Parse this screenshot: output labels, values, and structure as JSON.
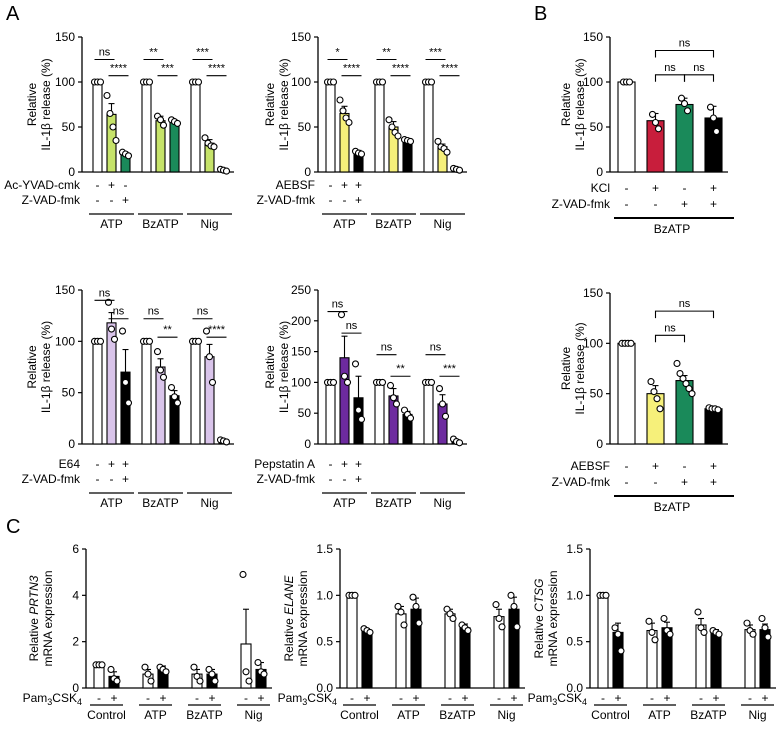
{
  "colors": {
    "white": "#ffffff",
    "lightyellow": "#f6f07a",
    "yellowgreen": "#c6e36a",
    "green": "#1a8a5a",
    "purple": "#6d2b9f",
    "lavender": "#d9c4ea",
    "red": "#c81e3c",
    "black": "#000000"
  },
  "panel_labels": {
    "a": "A",
    "b": "B",
    "c": "C"
  },
  "chart_data": [
    {
      "id": "A1",
      "type": "bar",
      "ylabel": "Relative IL-1β release (%)",
      "ylim": [
        0,
        150
      ],
      "yticks": [
        0,
        50,
        100,
        150
      ],
      "groups": [
        "ATP",
        "BzATP",
        "Nig"
      ],
      "row_labels": [
        "Ac-YVAD-cmk",
        "Z-VAD-fmk"
      ],
      "conditions": [
        [
          "-",
          "+",
          "-"
        ],
        [
          "-",
          "-",
          "+"
        ]
      ],
      "bar_colors": [
        "white",
        "yellowgreen",
        "green"
      ],
      "values": [
        [
          100,
          64,
          19
        ],
        [
          100,
          57,
          56
        ],
        [
          100,
          32,
          2
        ]
      ],
      "errors": [
        [
          0,
          12,
          3
        ],
        [
          0,
          5,
          2
        ],
        [
          0,
          4,
          1
        ]
      ],
      "points": [
        [
          [
            100,
            100,
            100
          ],
          [
            85,
            65,
            50,
            35
          ],
          [
            22,
            20,
            18
          ]
        ],
        [
          [
            100,
            100,
            100
          ],
          [
            62,
            58,
            52
          ],
          [
            58,
            56,
            54
          ]
        ],
        [
          [
            100,
            100,
            100
          ],
          [
            38,
            32,
            29,
            28
          ],
          [
            3,
            2,
            1
          ]
        ]
      ],
      "brackets": [
        {
          "g": 0,
          "a": 0,
          "b": 1,
          "y": 125,
          "label": "ns"
        },
        {
          "g": 0,
          "a": 1,
          "b": 2,
          "y": 107,
          "label": "****"
        },
        {
          "g": 1,
          "a": 0,
          "b": 1,
          "y": 125,
          "label": "**"
        },
        {
          "g": 1,
          "a": 1,
          "b": 2,
          "y": 107,
          "label": "***"
        },
        {
          "g": 2,
          "a": 0,
          "b": 1,
          "y": 125,
          "label": "***"
        },
        {
          "g": 2,
          "a": 1,
          "b": 2,
          "y": 107,
          "label": "****"
        }
      ]
    },
    {
      "id": "A2",
      "type": "bar",
      "ylabel": "Relative IL-1β release (%)",
      "ylim": [
        0,
        150
      ],
      "yticks": [
        0,
        50,
        100,
        150
      ],
      "groups": [
        "ATP",
        "BzATP",
        "Nig"
      ],
      "row_labels": [
        "AEBSF",
        "Z-VAD-fmk"
      ],
      "conditions": [
        [
          "-",
          "+",
          "+"
        ],
        [
          "-",
          "-",
          "+"
        ]
      ],
      "bar_colors": [
        "white",
        "lightyellow",
        "black"
      ],
      "values": [
        [
          100,
          65,
          22
        ],
        [
          100,
          50,
          35
        ],
        [
          100,
          28,
          3
        ]
      ],
      "errors": [
        [
          0,
          8,
          2
        ],
        [
          0,
          6,
          2
        ],
        [
          0,
          3,
          1
        ]
      ],
      "points": [
        [
          [
            100,
            100,
            100
          ],
          [
            80,
            68,
            60,
            55
          ],
          [
            23,
            21,
            20
          ]
        ],
        [
          [
            100,
            100,
            100
          ],
          [
            58,
            50,
            44,
            40
          ],
          [
            36,
            35,
            34
          ]
        ],
        [
          [
            100,
            100,
            100
          ],
          [
            34,
            28,
            26,
            22
          ],
          [
            4,
            3,
            2
          ]
        ]
      ],
      "brackets": [
        {
          "g": 0,
          "a": 0,
          "b": 1,
          "y": 125,
          "label": "*"
        },
        {
          "g": 0,
          "a": 1,
          "b": 2,
          "y": 107,
          "label": "****"
        },
        {
          "g": 1,
          "a": 0,
          "b": 1,
          "y": 125,
          "label": "**"
        },
        {
          "g": 1,
          "a": 1,
          "b": 2,
          "y": 107,
          "label": "****"
        },
        {
          "g": 2,
          "a": 0,
          "b": 1,
          "y": 125,
          "label": "***"
        },
        {
          "g": 2,
          "a": 1,
          "b": 2,
          "y": 107,
          "label": "****"
        }
      ]
    },
    {
      "id": "B1",
      "type": "bar",
      "ylabel": "Relative IL-1β release (%)",
      "ylim": [
        0,
        150
      ],
      "yticks": [
        0,
        50,
        100,
        150
      ],
      "groups": [
        "BzATP"
      ],
      "row_labels": [
        "KCl",
        "Z-VAD-fmk"
      ],
      "conditions": [
        [
          "-",
          "+",
          "-",
          "+"
        ],
        [
          "-",
          "-",
          "+",
          "+"
        ]
      ],
      "bar_colors": [
        "white",
        "red",
        "green",
        "black"
      ],
      "values": [
        [
          100,
          57,
          75,
          60
        ]
      ],
      "errors": [
        [
          0,
          8,
          7,
          13
        ]
      ],
      "points": [
        [
          [
            100,
            100,
            100
          ],
          [
            64,
            55,
            48
          ],
          [
            82,
            76,
            68
          ],
          [
            72,
            60,
            45
          ]
        ]
      ],
      "brackets": [
        {
          "g": 0,
          "a": 1,
          "b": 3,
          "y": 135,
          "label": "ns"
        },
        {
          "g": 0,
          "a": 1,
          "b": 2,
          "y": 108,
          "label": "ns"
        },
        {
          "g": 0,
          "a": 2,
          "b": 3,
          "y": 108,
          "label": "ns"
        }
      ]
    },
    {
      "id": "A3",
      "type": "bar",
      "ylabel": "Relative IL-1β release (%)",
      "ylim": [
        0,
        150
      ],
      "yticks": [
        0,
        50,
        100,
        150
      ],
      "groups": [
        "ATP",
        "BzATP",
        "Nig"
      ],
      "row_labels": [
        "E64",
        "Z-VAD-fmk"
      ],
      "conditions": [
        [
          "-",
          "+",
          "+"
        ],
        [
          "-",
          "-",
          "+"
        ]
      ],
      "bar_colors": [
        "white",
        "lavender",
        "black"
      ],
      "values": [
        [
          100,
          118,
          70
        ],
        [
          100,
          75,
          47
        ],
        [
          100,
          85,
          3
        ]
      ],
      "errors": [
        [
          0,
          10,
          22
        ],
        [
          0,
          8,
          5
        ],
        [
          0,
          12,
          1
        ]
      ],
      "points": [
        [
          [
            100,
            100,
            100
          ],
          [
            138,
            112,
            102
          ],
          [
            110,
            60,
            40
          ]
        ],
        [
          [
            100,
            100,
            100
          ],
          [
            90,
            72,
            65
          ],
          [
            55,
            46,
            40
          ]
        ],
        [
          [
            100,
            100,
            100
          ],
          [
            110,
            85,
            60
          ],
          [
            4,
            3,
            2
          ]
        ]
      ],
      "brackets": [
        {
          "g": 0,
          "a": 0,
          "b": 1,
          "y": 140,
          "label": "ns"
        },
        {
          "g": 0,
          "a": 1,
          "b": 2,
          "y": 122,
          "label": "ns"
        },
        {
          "g": 1,
          "a": 0,
          "b": 1,
          "y": 122,
          "label": "ns"
        },
        {
          "g": 1,
          "a": 1,
          "b": 2,
          "y": 104,
          "label": "**"
        },
        {
          "g": 2,
          "a": 0,
          "b": 1,
          "y": 122,
          "label": "ns"
        },
        {
          "g": 2,
          "a": 1,
          "b": 2,
          "y": 104,
          "label": "****"
        }
      ]
    },
    {
      "id": "A4",
      "type": "bar",
      "ylabel": "Relative IL-1β release (%)",
      "ylim": [
        0,
        250
      ],
      "yticks": [
        0,
        50,
        100,
        150,
        200,
        250
      ],
      "groups": [
        "ATP",
        "BzATP",
        "Nig"
      ],
      "row_labels": [
        "Pepstatin A",
        "Z-VAD-fmk"
      ],
      "conditions": [
        [
          "-",
          "+",
          "+"
        ],
        [
          "-",
          "-",
          "+"
        ]
      ],
      "bar_colors": [
        "white",
        "purple",
        "black"
      ],
      "values": [
        [
          100,
          140,
          75
        ],
        [
          100,
          78,
          48
        ],
        [
          100,
          65,
          5
        ]
      ],
      "errors": [
        [
          0,
          35,
          35
        ],
        [
          0,
          12,
          5
        ],
        [
          0,
          15,
          2
        ]
      ],
      "points": [
        [
          [
            100,
            100,
            100
          ],
          [
            210,
            110,
            100
          ],
          [
            130,
            55,
            40
          ]
        ],
        [
          [
            100,
            100,
            100
          ],
          [
            95,
            75,
            65
          ],
          [
            55,
            48,
            42
          ]
        ],
        [
          [
            100,
            100,
            100
          ],
          [
            90,
            65,
            45
          ],
          [
            8,
            4,
            2
          ]
        ]
      ],
      "brackets": [
        {
          "g": 0,
          "a": 0,
          "b": 1,
          "y": 215,
          "label": "ns"
        },
        {
          "g": 0,
          "a": 1,
          "b": 2,
          "y": 180,
          "label": "ns"
        },
        {
          "g": 1,
          "a": 0,
          "b": 1,
          "y": 145,
          "label": "ns"
        },
        {
          "g": 1,
          "a": 1,
          "b": 2,
          "y": 110,
          "label": "**"
        },
        {
          "g": 2,
          "a": 0,
          "b": 1,
          "y": 145,
          "label": "ns"
        },
        {
          "g": 2,
          "a": 1,
          "b": 2,
          "y": 110,
          "label": "***"
        }
      ]
    },
    {
      "id": "B2",
      "type": "bar",
      "ylabel": "Relative IL-1β release (%)",
      "ylim": [
        0,
        150
      ],
      "yticks": [
        0,
        50,
        100,
        150
      ],
      "groups": [
        "BzATP"
      ],
      "row_labels": [
        "AEBSF",
        "Z-VAD-fmk"
      ],
      "conditions": [
        [
          "-",
          "+",
          "-",
          "+"
        ],
        [
          "-",
          "-",
          "+",
          "+"
        ]
      ],
      "bar_colors": [
        "white",
        "lightyellow",
        "green",
        "black"
      ],
      "values": [
        [
          100,
          50,
          63,
          35
        ]
      ],
      "errors": [
        [
          0,
          8,
          5,
          1
        ]
      ],
      "points": [
        [
          [
            100,
            100,
            100,
            100
          ],
          [
            62,
            52,
            45,
            35
          ],
          [
            80,
            70,
            65,
            60,
            55,
            50
          ],
          [
            36,
            35,
            35,
            34
          ]
        ]
      ],
      "brackets": [
        {
          "g": 0,
          "a": 1,
          "b": 3,
          "y": 132,
          "label": "ns"
        },
        {
          "g": 0,
          "a": 1,
          "b": 2,
          "y": 108,
          "label": "ns"
        }
      ]
    },
    {
      "id": "C1",
      "type": "bar",
      "ylabel": "Relative PRTN3 mRNA expression",
      "ylim": [
        0,
        6
      ],
      "yticks": [
        0,
        2,
        4,
        6
      ],
      "groups": [
        "Control",
        "ATP",
        "BzATP",
        "Nig"
      ],
      "row_labels": [
        "Pam3CSK4"
      ],
      "conditions": [
        [
          "-",
          "+",
          "-",
          "+",
          "-",
          "+",
          "-",
          "+"
        ]
      ],
      "bar_colors": [
        "white",
        "black"
      ],
      "values": [
        [
          1.0,
          0.5
        ],
        [
          0.6,
          0.8
        ],
        [
          0.6,
          0.6
        ],
        [
          1.9,
          0.8
        ]
      ],
      "errors": [
        [
          0,
          0.2
        ],
        [
          0.2,
          0.15
        ],
        [
          0.2,
          0.2
        ],
        [
          1.5,
          0.3
        ]
      ],
      "points": [
        [
          [
            1.0,
            1.0,
            1.0
          ],
          [
            0.8,
            0.4,
            0.3
          ]
        ],
        [
          [
            0.9,
            0.6,
            0.3
          ],
          [
            0.9,
            0.8,
            0.7
          ]
        ],
        [
          [
            0.9,
            0.5,
            0.3
          ],
          [
            0.8,
            0.6,
            0.3
          ]
        ],
        [
          [
            4.9,
            0.7,
            0.3
          ],
          [
            1.1,
            0.7,
            0.6
          ]
        ]
      ],
      "brackets": []
    },
    {
      "id": "C2",
      "type": "bar",
      "ylabel": "Relative ELANE mRNA expression",
      "ylim": [
        0,
        1.5
      ],
      "yticks": [
        0.0,
        0.5,
        1.0,
        1.5
      ],
      "groups": [
        "Control",
        "ATP",
        "BzATP",
        "Nig"
      ],
      "row_labels": [
        "Pam3CSK4"
      ],
      "conditions": [
        [
          "-",
          "+",
          "-",
          "+",
          "-",
          "+",
          "-",
          "+"
        ]
      ],
      "bar_colors": [
        "white",
        "black"
      ],
      "values": [
        [
          1.0,
          0.62
        ],
        [
          0.8,
          0.85
        ],
        [
          0.8,
          0.65
        ],
        [
          0.77,
          0.85
        ]
      ],
      "errors": [
        [
          0,
          0.02
        ],
        [
          0.08,
          0.12
        ],
        [
          0.05,
          0.04
        ],
        [
          0.08,
          0.13
        ]
      ],
      "points": [
        [
          [
            1.0,
            1.0,
            1.0
          ],
          [
            0.64,
            0.62,
            0.6
          ]
        ],
        [
          [
            0.88,
            0.82,
            0.68
          ],
          [
            0.98,
            0.88,
            0.7
          ]
        ],
        [
          [
            0.85,
            0.8,
            0.75
          ],
          [
            0.68,
            0.65,
            0.62
          ]
        ],
        [
          [
            0.9,
            0.75,
            0.66
          ],
          [
            1.0,
            0.88,
            0.66
          ]
        ]
      ],
      "brackets": []
    },
    {
      "id": "C3",
      "type": "bar",
      "ylabel": "Relative CTSG mRNA expression",
      "ylim": [
        0,
        1.5
      ],
      "yticks": [
        0.0,
        0.5,
        1.0,
        1.5
      ],
      "groups": [
        "Control",
        "ATP",
        "BzATP",
        "Nig"
      ],
      "row_labels": [
        "Pam3CSK4"
      ],
      "conditions": [
        [
          "-",
          "+",
          "-",
          "+",
          "-",
          "+",
          "-",
          "+"
        ]
      ],
      "bar_colors": [
        "white",
        "black"
      ],
      "values": [
        [
          1.0,
          0.6
        ],
        [
          0.62,
          0.65
        ],
        [
          0.68,
          0.6
        ],
        [
          0.63,
          0.63
        ]
      ],
      "errors": [
        [
          0,
          0.1
        ],
        [
          0.08,
          0.06
        ],
        [
          0.07,
          0.03
        ],
        [
          0.05,
          0.06
        ]
      ],
      "points": [
        [
          [
            1.0,
            1.0,
            1.0
          ],
          [
            0.65,
            0.58,
            0.4
          ]
        ],
        [
          [
            0.72,
            0.6,
            0.52
          ],
          [
            0.75,
            0.62,
            0.58
          ]
        ],
        [
          [
            0.82,
            0.65,
            0.6
          ],
          [
            0.62,
            0.6,
            0.58
          ]
        ],
        [
          [
            0.7,
            0.62,
            0.58
          ],
          [
            0.75,
            0.65,
            0.55
          ]
        ]
      ],
      "brackets": []
    }
  ]
}
